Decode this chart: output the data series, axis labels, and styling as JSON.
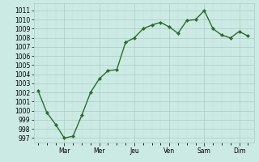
{
  "x_values": [
    0,
    6,
    12,
    18,
    24,
    30,
    36,
    42,
    48,
    54,
    60,
    66,
    72,
    78,
    84,
    90,
    96,
    102,
    108,
    114,
    120,
    126,
    132,
    138,
    144
  ],
  "y_values": [
    1002.2,
    999.8,
    998.5,
    997.0,
    997.2,
    999.5,
    1002.0,
    1003.5,
    1004.4,
    1004.5,
    1007.5,
    1008.0,
    1009.0,
    1009.4,
    1009.7,
    1009.2,
    1008.5,
    1009.9,
    1010.0,
    1011.0,
    1009.0,
    1008.3,
    1008.0,
    1008.7,
    1008.2
  ],
  "x_tick_positions": [
    18,
    42,
    66,
    90,
    114,
    138
  ],
  "x_tick_labels": [
    "Mar",
    "Mer",
    "Jeu",
    "Ven",
    "Sam",
    "Dim"
  ],
  "xlim": [
    -3,
    148
  ],
  "ylim": [
    996.5,
    1011.8
  ],
  "yticks": [
    997,
    998,
    999,
    1000,
    1001,
    1002,
    1003,
    1004,
    1005,
    1006,
    1007,
    1008,
    1009,
    1010,
    1011
  ],
  "line_color": "#2a6e2a",
  "marker_color": "#2a6e2a",
  "bg_color": "#cceae4",
  "grid_major_color": "#aaccc6",
  "grid_minor_color": "#bbddd8",
  "tick_label_size": 5.5,
  "linewidth": 1.0,
  "markersize": 2.2
}
